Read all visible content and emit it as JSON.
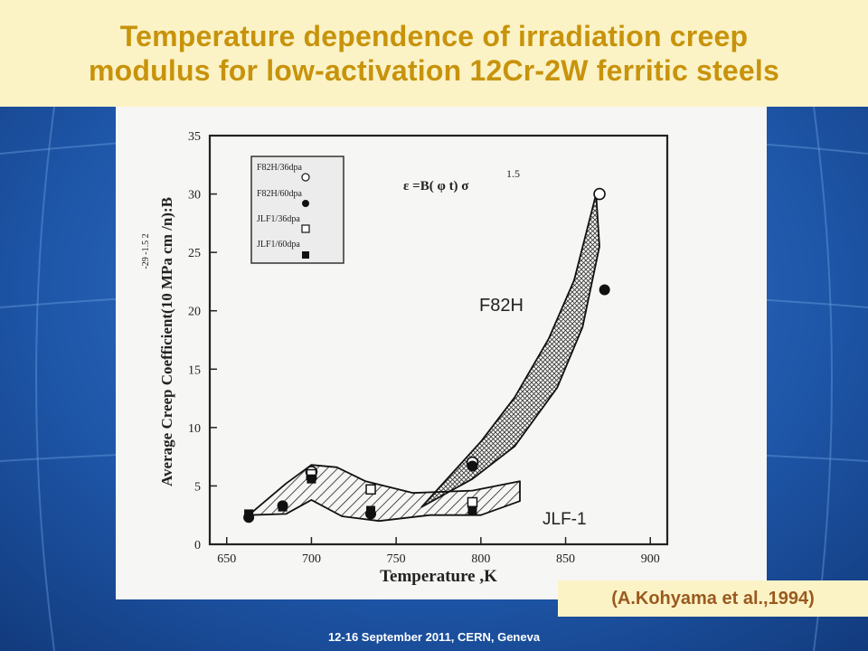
{
  "slide": {
    "title_line1": "Temperature dependence of irradiation creep",
    "title_line2": "modulus for low-activation 12Cr-2W ferritic steels",
    "citation": "(A.Kohyama et al.,1994)",
    "footer": "12-16  September 2011, CERN, Geneva",
    "colors": {
      "title_bg": "#fbf3c6",
      "title_text": "#c8930c",
      "citation_text": "#9a5a1f",
      "background": "#1d4f9e"
    }
  },
  "chart_data": {
    "type": "scatter",
    "xlabel": "Temperature ,K",
    "ylabel": "Average Creep Coefficient(10   MPa  cm /n):B",
    "ylabel_superscripts": "-29  -1.5  2",
    "equation": "ε =B( φ t) σ",
    "equation_exponent": "1.5",
    "xlim": [
      640,
      910
    ],
    "ylim": [
      0,
      35
    ],
    "x_ticks": [
      650,
      700,
      750,
      800,
      850,
      900
    ],
    "y_ticks": [
      0,
      5,
      10,
      15,
      20,
      25,
      30,
      35
    ],
    "legend_position": "top-left",
    "series": [
      {
        "name": "F82H/36dpa",
        "marker": "open-circle",
        "points": [
          [
            700,
            6.2
          ],
          [
            795,
            7.0
          ],
          [
            870,
            30.0
          ]
        ]
      },
      {
        "name": "F82H/60dpa",
        "marker": "filled-circle",
        "points": [
          [
            663,
            2.3
          ],
          [
            683,
            3.3
          ],
          [
            700,
            5.7
          ],
          [
            735,
            2.6
          ],
          [
            795,
            6.7
          ],
          [
            873,
            21.8
          ]
        ]
      },
      {
        "name": "JLF1/36dpa",
        "marker": "open-square",
        "points": [
          [
            700,
            6.0
          ],
          [
            735,
            4.7
          ],
          [
            795,
            3.6
          ]
        ]
      },
      {
        "name": "JLF1/60dpa",
        "marker": "filled-square",
        "points": [
          [
            663,
            2.6
          ],
          [
            683,
            3.2
          ],
          [
            700,
            5.6
          ],
          [
            735,
            2.9
          ],
          [
            795,
            2.9
          ]
        ]
      }
    ],
    "bands": [
      {
        "label": "F82H",
        "fill": "cross-hatch",
        "upper": [
          [
            780,
            5.6
          ],
          [
            800,
            8.8
          ],
          [
            820,
            12.6
          ],
          [
            840,
            17.6
          ],
          [
            855,
            22.6
          ],
          [
            868,
            30.0
          ]
        ],
        "lower": [
          [
            765,
            3.2
          ],
          [
            795,
            5.6
          ],
          [
            820,
            8.4
          ],
          [
            845,
            13.4
          ],
          [
            860,
            18.6
          ],
          [
            870,
            25.5
          ]
        ]
      },
      {
        "label": "JLF-1",
        "fill": "diagonal-hatch",
        "upper": [
          [
            685,
            5.2
          ],
          [
            700,
            6.8
          ],
          [
            715,
            6.6
          ],
          [
            732,
            5.4
          ],
          [
            760,
            4.4
          ],
          [
            795,
            4.6
          ],
          [
            823,
            5.4
          ]
        ],
        "lower": [
          [
            663,
            2.5
          ],
          [
            685,
            2.6
          ],
          [
            700,
            3.8
          ],
          [
            718,
            2.4
          ],
          [
            740,
            2.0
          ],
          [
            770,
            2.5
          ],
          [
            800,
            2.5
          ],
          [
            823,
            3.7
          ]
        ]
      }
    ]
  }
}
